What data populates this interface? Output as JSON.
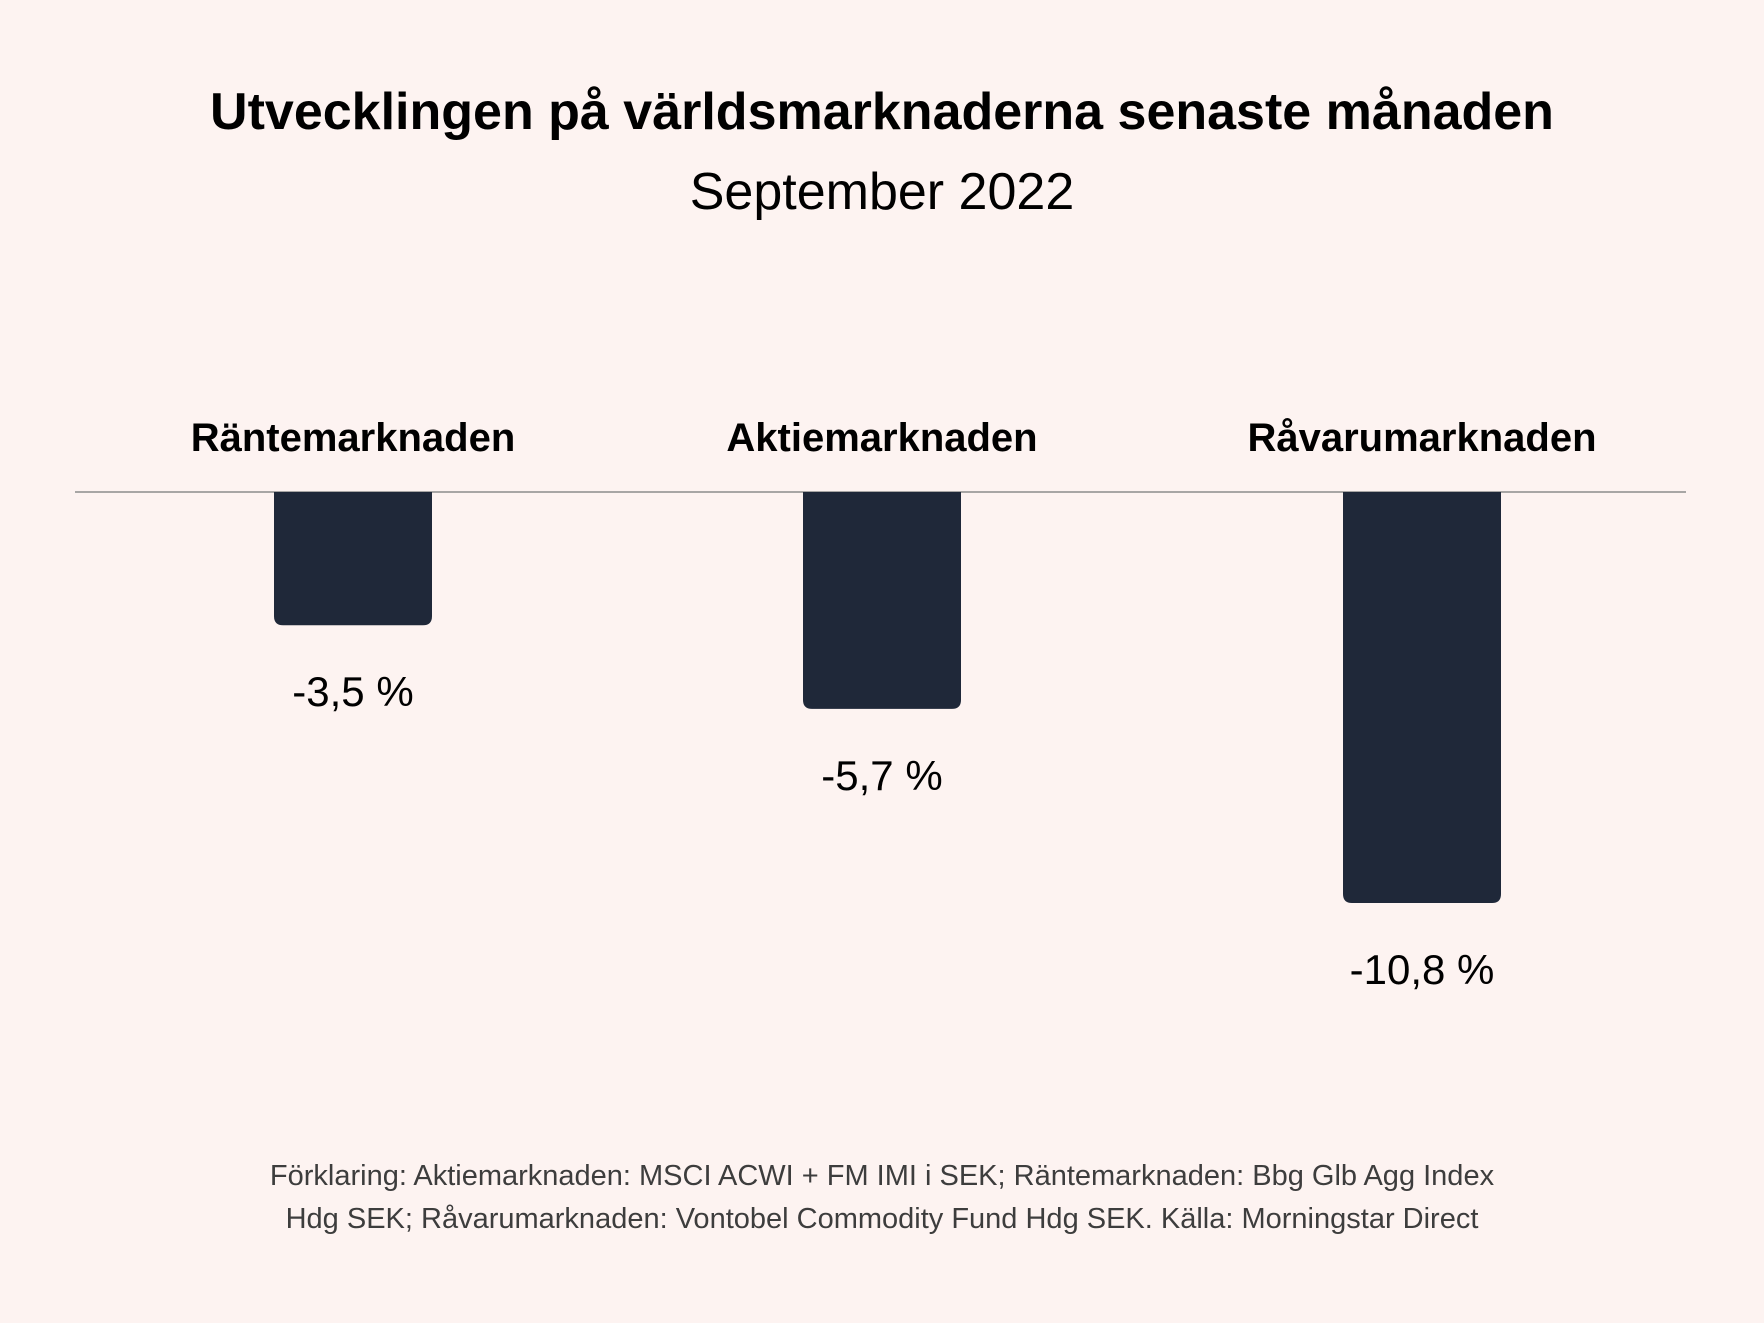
{
  "title": "Utvecklingen på världsmarknaderna senaste månaden",
  "subtitle": "September 2022",
  "colors": {
    "background": "#fdf3f1",
    "bar": "#1f2839",
    "baseline": "#8c8c8c",
    "text": "#000000",
    "footnote": "#3d3d3d"
  },
  "chart_data": {
    "type": "bar",
    "title": "Utvecklingen på världsmarknaderna senaste månaden",
    "subtitle": "September 2022",
    "categories": [
      "Räntemarknaden",
      "Aktiemarknaden",
      "Råvarumarknaden"
    ],
    "values": [
      -3.5,
      -5.7,
      -10.8
    ],
    "data_labels": [
      "-3,5 %",
      "-5,7 %",
      "-10,8 %"
    ],
    "unit": "%",
    "ylim": [
      -12,
      0
    ],
    "xlabel": "",
    "ylabel": "",
    "grid": false,
    "category_labels_position": "top"
  },
  "footnote": {
    "line1": "Förklaring: Aktiemarknaden: MSCI ACWI + FM IMI i SEK; Räntemarknaden: Bbg Glb Agg Index",
    "line2": "Hdg SEK; Råvarumarknaden: Vontobel Commodity Fund Hdg SEK. Källa: Morningstar Direct"
  }
}
